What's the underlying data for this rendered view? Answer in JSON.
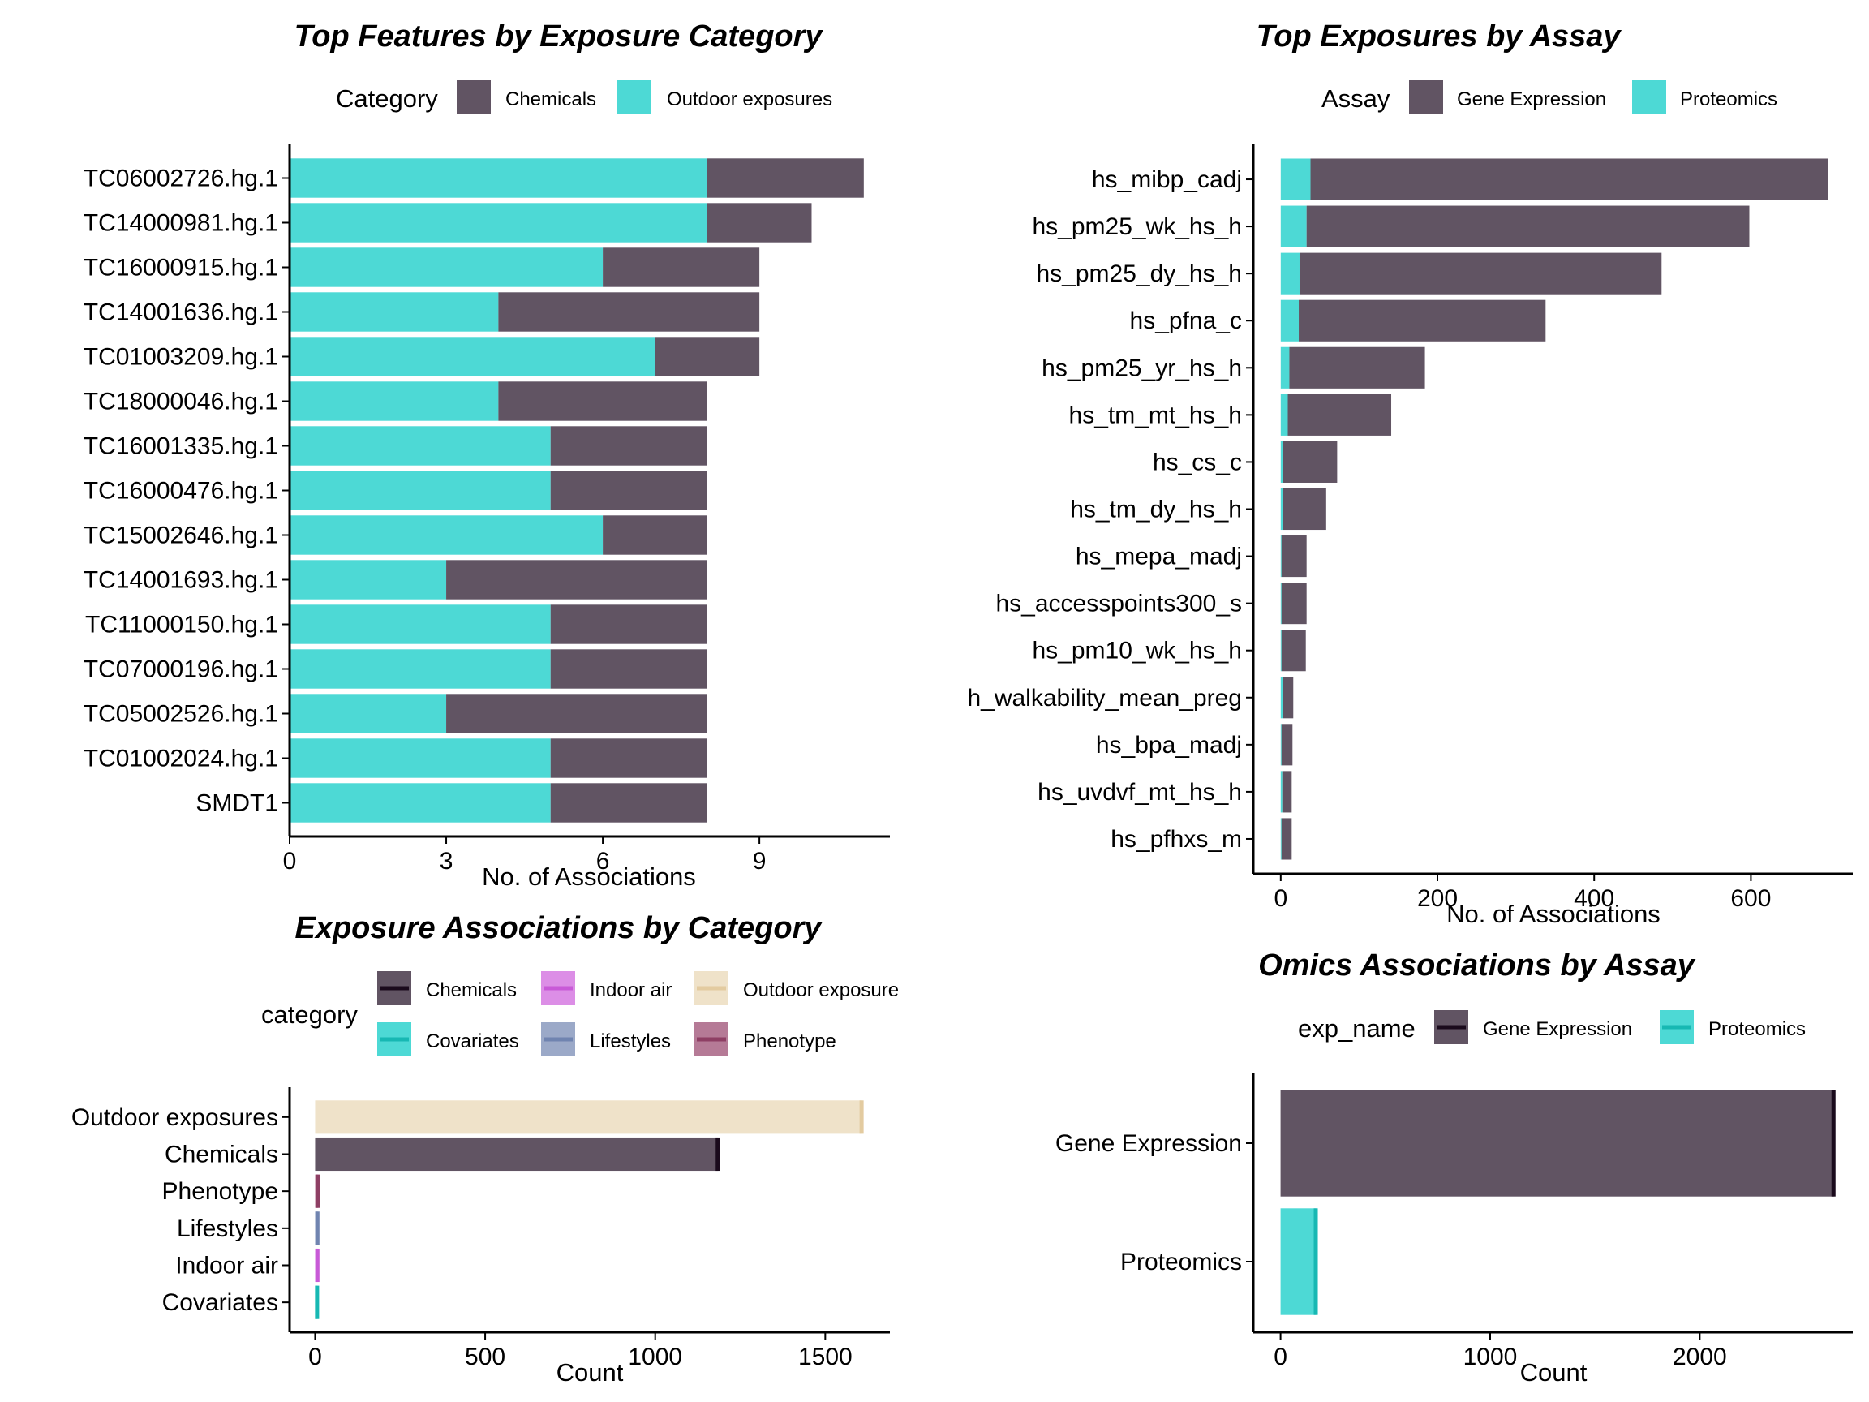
{
  "colors": {
    "chemicals": "#615463",
    "outdoor": "#4dd9d5",
    "gene": "#615463",
    "proteomics": "#4dd9d5",
    "axis": "#000000"
  },
  "chart_data": [
    {
      "id": "p1",
      "type": "bar",
      "orientation": "horizontal",
      "stacked": true,
      "title": "Top Features by Exposure Category",
      "xlabel": "No. of Associations",
      "ylabel": "",
      "legend": {
        "title": "Category",
        "position": "top",
        "entries": [
          {
            "label": "Chemicals",
            "color": "#615463"
          },
          {
            "label": "Outdoor exposures",
            "color": "#4dd9d5"
          }
        ]
      },
      "xlim": [
        0,
        11.5
      ],
      "xticks": [
        0,
        3,
        6,
        9
      ],
      "categories": [
        "TC06002726.hg.1",
        "TC14000981.hg.1",
        "TC16000915.hg.1",
        "TC14001636.hg.1",
        "TC01003209.hg.1",
        "TC18000046.hg.1",
        "TC16001335.hg.1",
        "TC16000476.hg.1",
        "TC15002646.hg.1",
        "TC14001693.hg.1",
        "TC11000150.hg.1",
        "TC07000196.hg.1",
        "TC05002526.hg.1",
        "TC01002024.hg.1",
        "SMDT1"
      ],
      "series": [
        {
          "name": "Outdoor exposures",
          "color": "#4dd9d5",
          "values": [
            8,
            8,
            6,
            4,
            7,
            4,
            5,
            5,
            6,
            3,
            5,
            5,
            3,
            5,
            5
          ]
        },
        {
          "name": "Chemicals",
          "color": "#615463",
          "values": [
            3,
            2,
            3,
            5,
            2,
            4,
            3,
            3,
            2,
            5,
            3,
            3,
            5,
            3,
            3
          ]
        }
      ],
      "grid": false
    },
    {
      "id": "p2",
      "type": "bar",
      "orientation": "horizontal",
      "stacked": true,
      "title": "Top Exposures by Assay",
      "xlabel": "No. of Associations",
      "ylabel": "",
      "legend": {
        "title": "Assay",
        "position": "top",
        "entries": [
          {
            "label": "Gene Expression",
            "color": "#615463"
          },
          {
            "label": "Proteomics",
            "color": "#4dd9d5"
          }
        ]
      },
      "xlim": [
        -35,
        730
      ],
      "xticks": [
        0,
        200,
        400,
        600
      ],
      "categories": [
        "hs_mibp_cadj",
        "hs_pm25_wk_hs_h",
        "hs_pm25_dy_hs_h",
        "hs_pfna_c",
        "hs_pm25_yr_hs_h",
        "hs_tm_mt_hs_h",
        "hs_cs_c",
        "hs_tm_dy_hs_h",
        "hs_mepa_madj",
        "hs_accesspoints300_s",
        "hs_pm10_wk_hs_h",
        "h_walkability_mean_preg",
        "hs_bpa_madj",
        "hs_uvdvf_mt_hs_h",
        "hs_pfhxs_m"
      ],
      "series": [
        {
          "name": "Proteomics",
          "color": "#4dd9d5",
          "values": [
            38,
            33,
            24,
            23,
            11,
            9,
            3,
            3,
            1,
            1,
            1,
            3,
            1,
            2,
            1
          ]
        },
        {
          "name": "Gene Expression",
          "color": "#615463",
          "values": [
            660,
            565,
            462,
            315,
            173,
            132,
            69,
            55,
            32,
            32,
            31,
            13,
            14,
            12,
            13
          ]
        }
      ],
      "grid": false
    },
    {
      "id": "p3",
      "type": "bar",
      "orientation": "horizontal",
      "stacked": false,
      "title": "Exposure Associations by Category",
      "xlabel": "Count",
      "ylabel": "",
      "legend": {
        "title": "category",
        "position": "top",
        "entries": [
          {
            "label": "Chemicals",
            "color": "#615463",
            "line": "#1a0a1c"
          },
          {
            "label": "Indoor air",
            "color": "#dc8ee6",
            "line": "#c85ad7"
          },
          {
            "label": "Outdoor exposure",
            "color": "#efe2c9",
            "line": "#e3cba0"
          },
          {
            "label": "Covariates",
            "color": "#4dd9d5",
            "line": "#17b8b3"
          },
          {
            "label": "Lifestyles",
            "color": "#9ba9c8",
            "line": "#7084b0"
          },
          {
            "label": "Phenotype",
            "color": "#b57a96",
            "line": "#8e3f64"
          }
        ]
      },
      "xlim": [
        -75,
        1690
      ],
      "xticks": [
        0,
        500,
        1000,
        1500
      ],
      "categories": [
        "Outdoor exposures",
        "Chemicals",
        "Phenotype",
        "Lifestyles",
        "Indoor air",
        "Covariates"
      ],
      "values": [
        1608,
        1185,
        9,
        8,
        8,
        7
      ],
      "bar_colors": [
        "#efe2c9",
        "#615463",
        "#b57a96",
        "#9ba9c8",
        "#dc8ee6",
        "#4dd9d5"
      ],
      "line_colors": [
        "#e3cba0",
        "#1a0a1c",
        "#8e3f64",
        "#7084b0",
        "#c85ad7",
        "#17b8b3"
      ],
      "grid": false
    },
    {
      "id": "p4",
      "type": "bar",
      "orientation": "horizontal",
      "stacked": false,
      "title": "Omics Associations by Assay",
      "xlabel": "Count",
      "ylabel": "",
      "legend": {
        "title": "exp_name",
        "position": "top",
        "entries": [
          {
            "label": "Gene Expression",
            "color": "#615463",
            "line": "#1a0a1c"
          },
          {
            "label": "Proteomics",
            "color": "#4dd9d5",
            "line": "#17b8b3"
          }
        ]
      },
      "xlim": [
        -130,
        2730
      ],
      "xticks": [
        0,
        1000,
        2000
      ],
      "categories": [
        "Gene Expression",
        "Proteomics"
      ],
      "values": [
        2640,
        170
      ],
      "bar_colors": [
        "#615463",
        "#4dd9d5"
      ],
      "line_colors": [
        "#1a0a1c",
        "#17b8b3"
      ],
      "grid": false
    }
  ]
}
